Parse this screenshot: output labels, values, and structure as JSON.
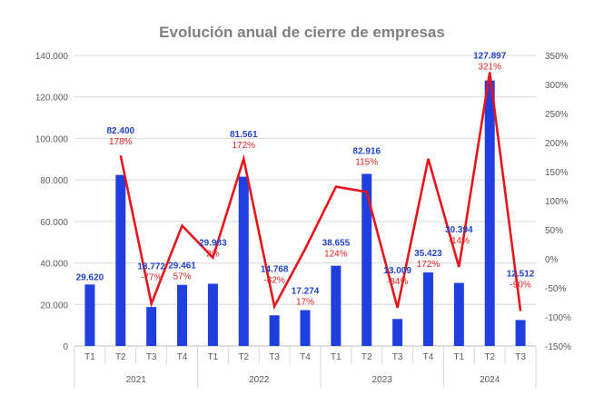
{
  "chart_data": {
    "type": "bar",
    "title": "Evolución anual de cierre de empresas",
    "categories": [
      "T1",
      "T2",
      "T3",
      "T4",
      "T1",
      "T2",
      "T3",
      "T4",
      "T1",
      "T2",
      "T3",
      "T4",
      "T1",
      "T2",
      "T3"
    ],
    "groups": [
      {
        "label": "2021",
        "count": 4
      },
      {
        "label": "2022",
        "count": 4
      },
      {
        "label": "2023",
        "count": 4
      },
      {
        "label": "2024",
        "count": 3
      }
    ],
    "series": [
      {
        "type": "bar",
        "axis": "left",
        "values": [
          29620,
          82400,
          18772,
          29461,
          29983,
          81561,
          14768,
          17274,
          38655,
          82916,
          13009,
          35423,
          30394,
          127897,
          12512
        ],
        "labels": [
          "29.620",
          "82.400",
          "18.772",
          "29.461",
          "29.983",
          "81.561",
          "14.768",
          "17.274",
          "38.655",
          "82.916",
          "13.009",
          "35.423",
          "30.394",
          "127.897",
          "12.512"
        ]
      },
      {
        "type": "line",
        "axis": "right",
        "values": [
          null,
          178,
          -77,
          57,
          2,
          172,
          -82,
          17,
          124,
          115,
          -84,
          172,
          -14,
          321,
          -90
        ],
        "labels": [
          null,
          "178%",
          "-77%",
          "57%",
          "2%",
          "172%",
          "-82%",
          "17%",
          "124%",
          "115%",
          "-84%",
          "172%",
          "-14%",
          "321%",
          "-90%"
        ]
      }
    ],
    "y_left": {
      "min": 0,
      "max": 140000,
      "ticks": [
        0,
        20000,
        40000,
        60000,
        80000,
        100000,
        120000,
        140000
      ],
      "tick_labels": [
        "0",
        "20.000",
        "40.000",
        "60.000",
        "80.000",
        "100.000",
        "120.000",
        "140.000"
      ]
    },
    "y_right": {
      "min": -150,
      "max": 350,
      "ticks": [
        -150,
        -100,
        -50,
        0,
        50,
        100,
        150,
        200,
        250,
        300,
        350
      ],
      "tick_labels": [
        "-150%",
        "-100%",
        "-50%",
        "0%",
        "50%",
        "100%",
        "150%",
        "200%",
        "250%",
        "300%",
        "350%"
      ]
    },
    "grid": true,
    "colors": {
      "bar": "#1f3fe0",
      "line": "#e8141c",
      "bar_label": "#2244cc",
      "line_label": "#e02020",
      "grid": "#d9d9d9",
      "axis_text": "#595959"
    }
  }
}
